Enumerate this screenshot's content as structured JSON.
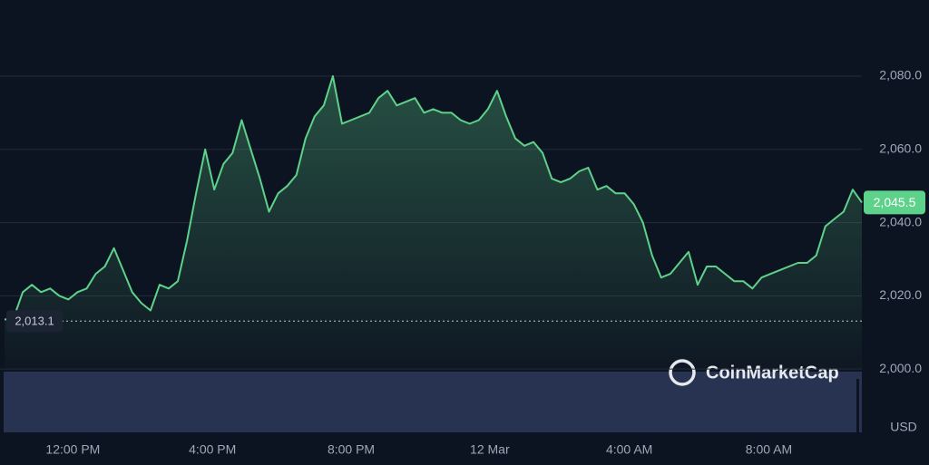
{
  "chart_data": {
    "type": "line",
    "series": [
      {
        "name": "Price",
        "color": "#5ed18a",
        "values": [
          2013.5,
          2014,
          2021,
          2023,
          2021,
          2022,
          2020,
          2019,
          2021,
          2022,
          2026,
          2028,
          2033,
          2027,
          2021,
          2018,
          2016,
          2023,
          2022,
          2024,
          2035,
          2048,
          2060,
          2049,
          2056,
          2059,
          2068,
          2060,
          2052,
          2043,
          2048,
          2050,
          2053,
          2063,
          2069,
          2072,
          2080,
          2067,
          2068,
          2069,
          2070,
          2074,
          2076,
          2072,
          2073,
          2074,
          2070,
          2071,
          2070,
          2070,
          2068,
          2067,
          2068,
          2071,
          2076,
          2069,
          2063,
          2061,
          2062,
          2059,
          2052,
          2051,
          2052,
          2054,
          2055,
          2049,
          2050,
          2048,
          2048,
          2045,
          2040,
          2031,
          2025,
          2026,
          2029,
          2032,
          2023,
          2028,
          2028,
          2026,
          2024,
          2024,
          2022,
          2025,
          2026,
          2027,
          2028,
          2029,
          2029,
          2031,
          2039,
          2041,
          2043,
          2049,
          2045.5
        ]
      }
    ],
    "xticks": [
      {
        "value": 7.5,
        "label": "12:00 PM"
      },
      {
        "value": 22.8,
        "label": "4:00 PM"
      },
      {
        "value": 38,
        "label": "8:00 PM"
      },
      {
        "value": 53.2,
        "label": "12 Mar"
      },
      {
        "value": 68.5,
        "label": "4:00 AM"
      },
      {
        "value": 83.8,
        "label": "8:00 AM"
      }
    ],
    "ylim": [
      1982.7,
      2100.8
    ],
    "yticks": [
      {
        "value": 2000,
        "label": "2,000.0"
      },
      {
        "value": 2020,
        "label": "2,020.0"
      },
      {
        "value": 2040,
        "label": "2,040.0"
      },
      {
        "value": 2060,
        "label": "2,060.0"
      },
      {
        "value": 2080,
        "label": "2,080.0"
      }
    ],
    "grid": true,
    "reference_line": {
      "value": 2013.1,
      "label": "2,013.1"
    },
    "current_price": {
      "value": 2045.5,
      "label": "2,045.5"
    },
    "y_unit": "USD",
    "watermark": "CoinMarketCap"
  }
}
